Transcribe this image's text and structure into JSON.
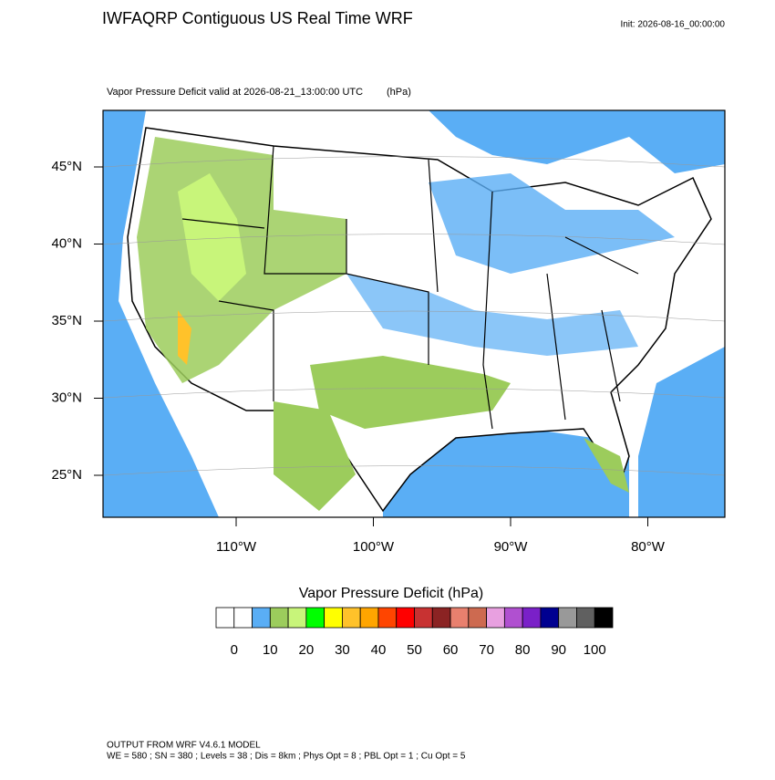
{
  "header": {
    "title": "IWFAQRP Contiguous US Real Time WRF",
    "init": "Init: 2026-08-16_00:00:00"
  },
  "map": {
    "subtitle": "Vapor Pressure Deficit valid at 2026-08-21_13:00:00 UTC",
    "units": "(hPa)",
    "lat_ticks": [
      {
        "value": 45,
        "label": "45°N"
      },
      {
        "value": 40,
        "label": "40°N"
      },
      {
        "value": 35,
        "label": "35°N"
      },
      {
        "value": 30,
        "label": "30°N"
      },
      {
        "value": 25,
        "label": "25°N"
      }
    ],
    "lon_ticks": [
      {
        "value": -110,
        "label": "110°W"
      },
      {
        "value": -100,
        "label": "100°W"
      },
      {
        "value": -90,
        "label": "90°W"
      },
      {
        "value": -80,
        "label": "80°W"
      }
    ]
  },
  "colorbar": {
    "title": "Vapor Pressure Deficit  (hPa)",
    "colors": [
      "#ffffff",
      "#ffffff",
      "#5aaef5",
      "#9ccc5c",
      "#c8f57a",
      "#00ff00",
      "#ffff00",
      "#ffc22a",
      "#ffa500",
      "#ff4500",
      "#ff0000",
      "#c83232",
      "#8b2323",
      "#e8806e",
      "#cd6a50",
      "#e8a0e0",
      "#b050d0",
      "#7a20c8",
      "#000090",
      "#999999",
      "#606060",
      "#000000"
    ],
    "ticks": [
      0,
      10,
      20,
      30,
      40,
      50,
      60,
      70,
      80,
      90,
      100
    ]
  },
  "footer": {
    "line1": "OUTPUT FROM WRF V4.6.1 MODEL",
    "line2": "WE = 580 ; SN = 380 ; Levels = 38 ; Dis = 8km ; Phys Opt = 8 ; PBL Opt = 1 ; Cu Opt = 5"
  }
}
